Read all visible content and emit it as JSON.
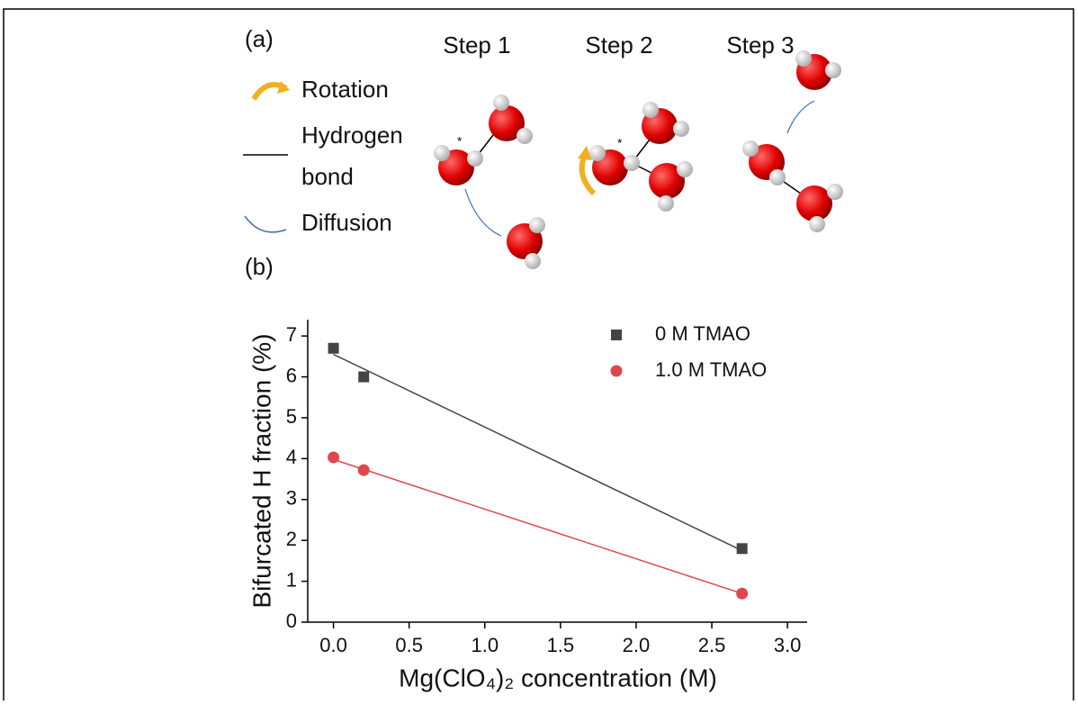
{
  "panel_a": {
    "label": "(a)",
    "steps": [
      "Step 1",
      "Step 2",
      "Step 3"
    ],
    "legend": [
      "Rotation",
      "Hydrogen",
      "bond",
      "Diffusion"
    ]
  },
  "chart_data": {
    "type": "scatter",
    "panel_label": "(b)",
    "xlabel": "Mg(ClO₄)₂ concentration (M)",
    "ylabel": "Bifurcated H fraction (%)",
    "xlim": [
      -0.17,
      3.13
    ],
    "ylim": [
      0,
      7.4
    ],
    "xticks": [
      {
        "value": 0,
        "label": "0.0"
      },
      {
        "value": 0.5,
        "label": "0.5"
      },
      {
        "value": 1,
        "label": "1.0"
      },
      {
        "value": 1.5,
        "label": "1.5"
      },
      {
        "value": 2,
        "label": "2.0"
      },
      {
        "value": 2.5,
        "label": "2.5"
      },
      {
        "value": 3,
        "label": "3.0"
      }
    ],
    "yticks": [
      0,
      1,
      2,
      3,
      4,
      5,
      6,
      7
    ],
    "series": [
      {
        "name": "0 M TMAO",
        "color": "#444444",
        "marker": "square",
        "x": [
          0,
          0.2,
          2.7
        ],
        "values": [
          6.7,
          6.0,
          1.8
        ]
      },
      {
        "name": "1.0 M TMAO",
        "color": "#e0474c",
        "marker": "circle",
        "x": [
          0,
          0.2,
          2.7
        ],
        "values": [
          4.03,
          3.72,
          0.7
        ]
      }
    ],
    "fit_lines": [
      {
        "color": "#444444",
        "x": [
          0,
          2.7
        ],
        "values": [
          6.55,
          1.75
        ]
      },
      {
        "color": "#e0474c",
        "x": [
          0,
          2.7
        ],
        "values": [
          3.98,
          0.7
        ]
      }
    ],
    "legend": "upper right"
  }
}
